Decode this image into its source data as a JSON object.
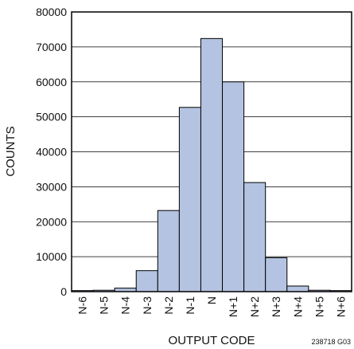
{
  "chart_data": {
    "type": "bar",
    "categories": [
      "N-6",
      "N-5",
      "N-4",
      "N-3",
      "N-2",
      "N-1",
      "N",
      "N+1",
      "N+2",
      "N+3",
      "N+4",
      "N+5",
      "N+6"
    ],
    "values": [
      300,
      400,
      1000,
      6000,
      23200,
      52700,
      72400,
      60000,
      31200,
      9700,
      1600,
      400,
      300
    ],
    "xlabel": "OUTPUT CODE",
    "ylabel": "COUNTS",
    "ylim": [
      0,
      80000
    ],
    "yticks": [
      0,
      10000,
      20000,
      30000,
      40000,
      50000,
      60000,
      70000,
      80000
    ],
    "grid": true,
    "bar_color": "#b4c3e1",
    "code_label": "238718 G03"
  }
}
